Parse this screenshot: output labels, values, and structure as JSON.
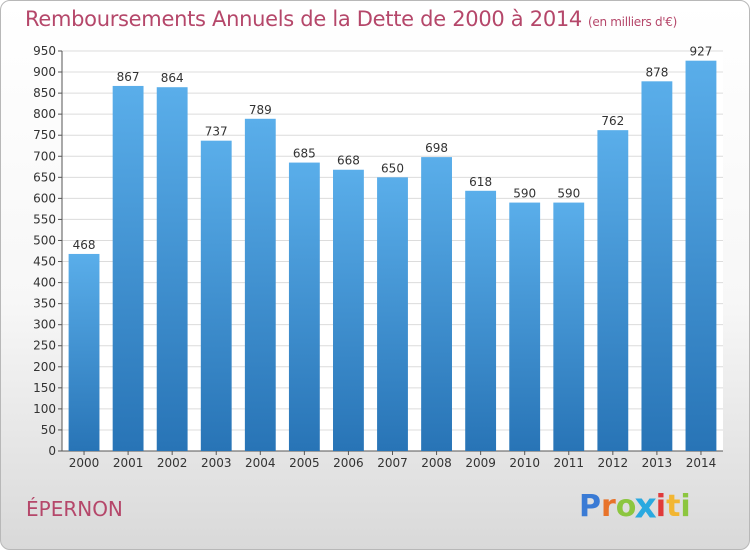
{
  "chart_data": {
    "type": "bar",
    "title": "Remboursements Annuels de la Dette de 2000 à 2014",
    "subtitle": "(en milliers d'€)",
    "categories": [
      "2000",
      "2001",
      "2002",
      "2003",
      "2004",
      "2005",
      "2006",
      "2007",
      "2008",
      "2009",
      "2010",
      "2011",
      "2012",
      "2013",
      "2014"
    ],
    "values": [
      468,
      867,
      864,
      737,
      789,
      685,
      668,
      650,
      698,
      618,
      590,
      590,
      762,
      878,
      927
    ],
    "ylim": [
      0,
      950
    ],
    "ytick_step": 50,
    "xlabel": "",
    "ylabel": "",
    "grid": true
  },
  "footer": {
    "place": "ÉPERNON",
    "logo_letters": [
      "P",
      "r",
      "o",
      "x",
      "i",
      "t",
      "i"
    ],
    "logo_colors": [
      "#3a7bd5",
      "#e8732a",
      "#8cc63f",
      "#2aa9e0",
      "#e03a3a",
      "#f2b632",
      "#8cc63f"
    ]
  },
  "colors": {
    "bar_top": "#5aaeea",
    "bar_bottom": "#2874b6",
    "grid": "#dcdcdc",
    "title": "#b5476a"
  }
}
